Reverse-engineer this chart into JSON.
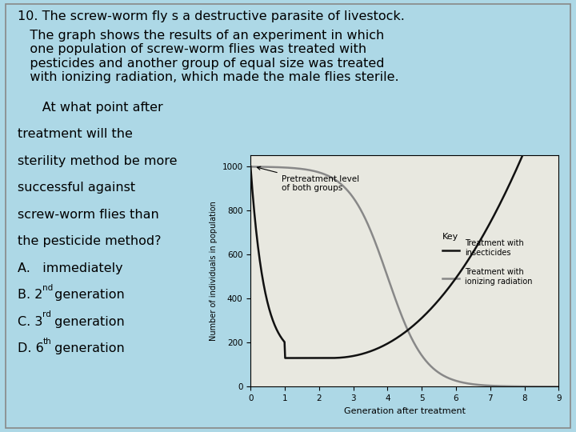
{
  "bg_color": "#add8e6",
  "chart_bg": "#e8e8e0",
  "ylabel": "Number of individuals in population",
  "xlabel": "Generation after treatment",
  "xlim": [
    0,
    9
  ],
  "ylim": [
    0,
    1050
  ],
  "yticks": [
    0,
    200,
    400,
    600,
    800,
    1000
  ],
  "xticks": [
    0,
    1,
    2,
    3,
    4,
    5,
    6,
    7,
    8,
    9
  ],
  "insecticide_color": "#111111",
  "radiation_color": "#888888",
  "line1": "Treatment with\ninsecticides",
  "line2": "Treatment with\nionizing radiation",
  "key_title": "Key",
  "annotation": "Pretreatment level\nof both groups",
  "para1": "10. The screw-worm fly s a destructive parasite of livestock.",
  "para2": "   The graph shows the results of an experiment in which\n   one population of screw-worm flies was treated with\n   pesticides and another group of equal size was treated\n   with ionizing radiation, which made the male flies sterile.",
  "q_line0": "      At what point after",
  "q_line1": "treatment will the",
  "q_line2": "sterility method be more",
  "q_line3": "successful against",
  "q_line4": "screw-worm flies than",
  "q_line5": "the pesticide method?",
  "q_line6": "A.   immediately",
  "q_line7b": "B. 2",
  "q_line7s": "nd",
  "q_line7e": " generation",
  "q_line8b": "C. 3",
  "q_line8s": "rd",
  "q_line8e": " generation",
  "q_line9b": "D. 6",
  "q_line9s": "th",
  "q_line9e": " generation",
  "border_color": "#888888",
  "text_fontsize": 11.5,
  "small_fontsize": 9.5
}
